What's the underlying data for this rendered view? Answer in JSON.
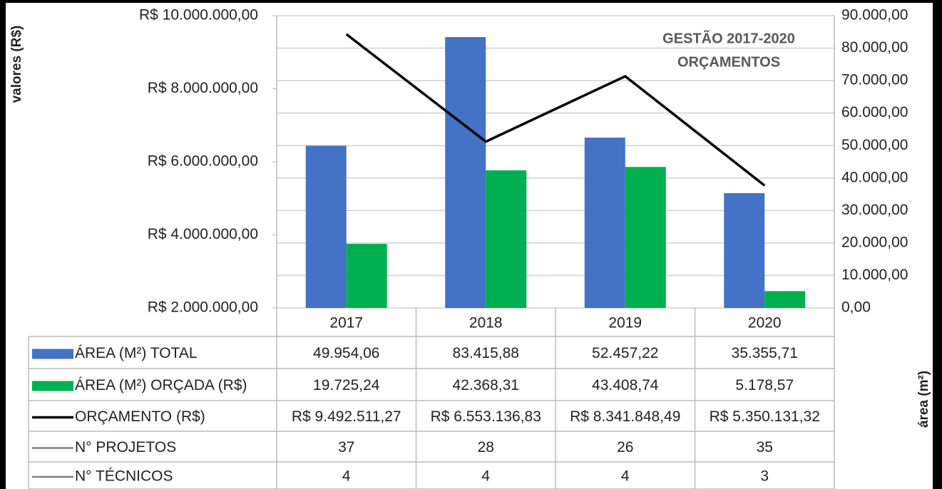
{
  "chart_data": {
    "type": "bar",
    "title": "GESTÃO 2017-2020",
    "subtitle": "ORÇAMENTOS",
    "ylabel": "valores (R$)",
    "y2label": "área (m²)",
    "categories": [
      "2017",
      "2018",
      "2019",
      "2020"
    ],
    "ylim": [
      2000000,
      10000000
    ],
    "yticks": [
      {
        "value": 2000000,
        "label": "R$ 2.000.000,00"
      },
      {
        "value": 4000000,
        "label": "R$ 4.000.000,00"
      },
      {
        "value": 6000000,
        "label": "R$ 6.000.000,00"
      },
      {
        "value": 8000000,
        "label": "R$ 8.000.000,00"
      },
      {
        "value": 10000000,
        "label": "R$ 10.000.000,00"
      }
    ],
    "y2lim": [
      0,
      90000
    ],
    "y2ticks": [
      {
        "value": 0,
        "label": "0,00"
      },
      {
        "value": 10000,
        "label": "10.000,00"
      },
      {
        "value": 20000,
        "label": "20.000,00"
      },
      {
        "value": 30000,
        "label": "30.000,00"
      },
      {
        "value": 40000,
        "label": "40.000,00"
      },
      {
        "value": 50000,
        "label": "50.000,00"
      },
      {
        "value": 60000,
        "label": "60.000,00"
      },
      {
        "value": 70000,
        "label": "70.000,00"
      },
      {
        "value": 80000,
        "label": "80.000,00"
      },
      {
        "value": 90000,
        "label": "90.000,00"
      }
    ],
    "grid": true,
    "series": [
      {
        "name": "ÁREA (M²) TOTAL",
        "type": "bar",
        "axis": "y2",
        "color": "#4472c4",
        "values": [
          49954.06,
          83415.88,
          52457.22,
          35355.71
        ],
        "value_labels": [
          "49.954,06",
          "83.415,88",
          "52.457,22",
          "35.355,71"
        ]
      },
      {
        "name": "ÁREA (M²) ORÇADA (R$)",
        "type": "bar",
        "axis": "y2",
        "color": "#00b050",
        "values": [
          19725.24,
          42368.31,
          43408.74,
          5178.57
        ],
        "value_labels": [
          "19.725,24",
          "42.368,31",
          "43.408,74",
          "5.178,57"
        ]
      },
      {
        "name": "ORÇAMENTO (R$)",
        "type": "line",
        "axis": "y",
        "color": "#000000",
        "values": [
          9492511.27,
          6553136.83,
          8341848.49,
          5350131.32
        ],
        "value_labels": [
          "R$ 9.492.511,27",
          "R$ 6.553.136,83",
          "R$ 8.341.848,49",
          "R$ 5.350.131,32"
        ]
      },
      {
        "name": "N° PROJETOS",
        "type": "table",
        "color": "#808080",
        "values": [
          37,
          28,
          26,
          35
        ]
      },
      {
        "name": "N° TÉCNICOS",
        "type": "table",
        "color": "#808080",
        "values": [
          4,
          4,
          4,
          3
        ]
      }
    ]
  }
}
